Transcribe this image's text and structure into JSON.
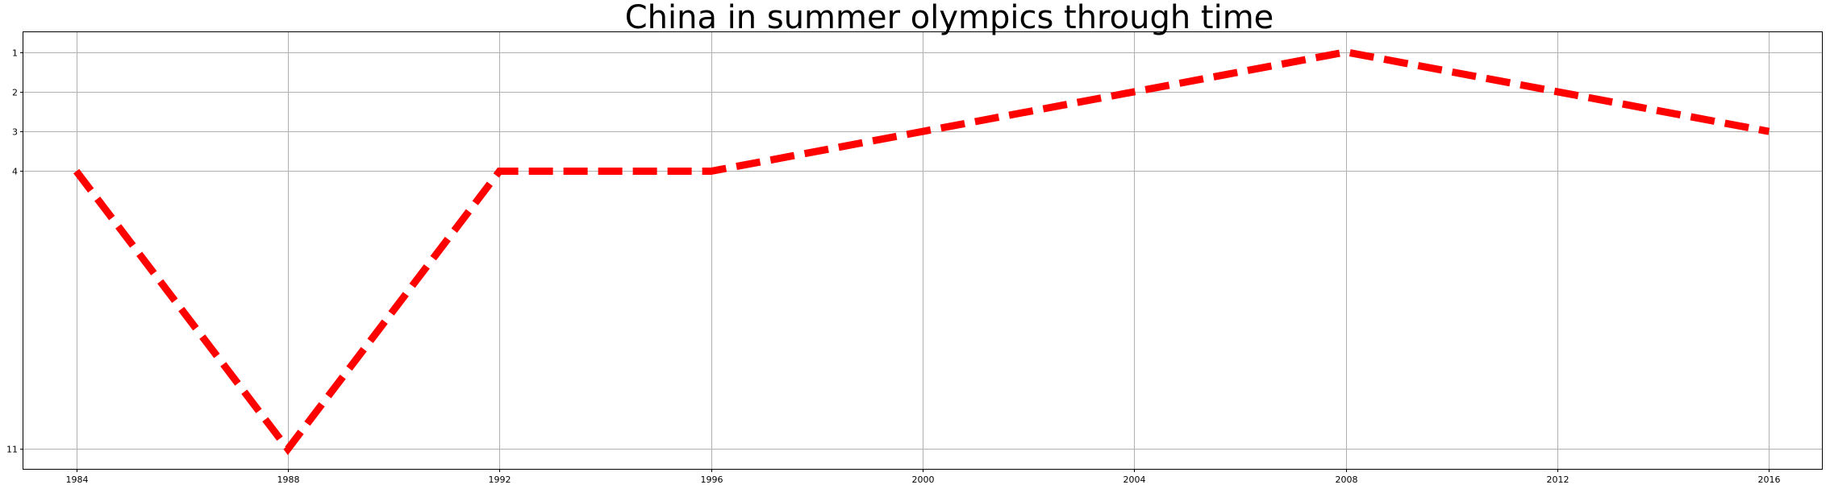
{
  "chart_data": {
    "type": "line",
    "title": "China in summer olympics through time",
    "xlabel": "",
    "ylabel": "",
    "x": [
      1984,
      1988,
      1992,
      1996,
      2000,
      2004,
      2008,
      2012,
      2016
    ],
    "series": [
      {
        "values": [
          4,
          11,
          4,
          4,
          3,
          2,
          1,
          2,
          3
        ],
        "color": "#ff0000",
        "line_style": "dashed"
      }
    ],
    "x_ticks": [
      "1984",
      "1988",
      "1992",
      "1996",
      "2000",
      "2004",
      "2008",
      "2012",
      "2016"
    ],
    "y_ticks": [
      1,
      2,
      3,
      4,
      11
    ],
    "y_tick_labels": [
      "1",
      "2",
      "3",
      "4",
      "11"
    ],
    "xlim": [
      1983,
      2017
    ],
    "ylim": [
      11.5,
      0.5
    ],
    "y_inverted": true,
    "grid": true,
    "legend": "none"
  }
}
